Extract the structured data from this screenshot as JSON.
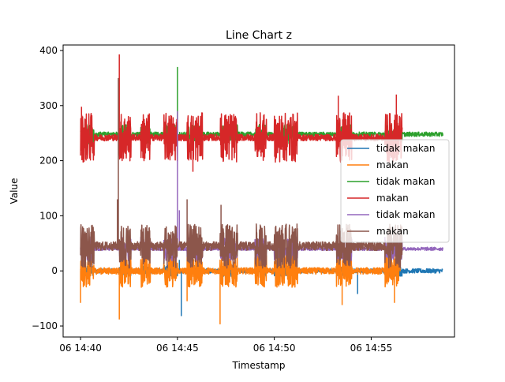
{
  "chart_data": {
    "type": "line",
    "title": "Line Chart z",
    "xlabel": "Timestamp",
    "ylabel": "Value",
    "x_ticks": [
      {
        "value": 0,
        "label": "06 14:40"
      },
      {
        "value": 5,
        "label": "06 14:45"
      },
      {
        "value": 10,
        "label": "06 14:50"
      },
      {
        "value": 15,
        "label": "06 14:55"
      }
    ],
    "xlim_minutes_after_1440": [
      -0.9,
      19.3
    ],
    "ylim": [
      -120,
      410
    ],
    "y_ticks": [
      -100,
      0,
      100,
      200,
      300,
      400
    ],
    "legend_position": "center-right",
    "grid": false,
    "series": [
      {
        "name": "tidak makan",
        "color": "#1f77b4",
        "base": 0,
        "noise": 4,
        "burst": 10,
        "spikes": [
          [
            5.2,
            -82
          ],
          [
            5.1,
            20
          ],
          [
            13.5,
            -10
          ],
          [
            14.3,
            -42
          ]
        ]
      },
      {
        "name": "makan",
        "color": "#ff7f0e",
        "base": 0,
        "noise": 6,
        "burst": 30,
        "spikes": [
          [
            0.0,
            -58
          ],
          [
            2.0,
            -88
          ],
          [
            7.2,
            -97
          ],
          [
            5.5,
            -55
          ],
          [
            13.5,
            -62
          ],
          [
            16.2,
            -58
          ]
        ]
      },
      {
        "name": "tidak makan",
        "color": "#2ca02c",
        "base": 248,
        "noise": 4,
        "burst": 18,
        "spikes": [
          [
            5.0,
            370
          ],
          [
            7.3,
            205
          ]
        ]
      },
      {
        "name": "makan",
        "color": "#d62728",
        "base": 242,
        "noise": 6,
        "burst": 45,
        "spikes": [
          [
            2.0,
            393
          ],
          [
            0.05,
            298
          ],
          [
            5.8,
            180
          ],
          [
            13.3,
            318
          ],
          [
            16.3,
            320
          ]
        ]
      },
      {
        "name": "tidak makan",
        "color": "#9467bd",
        "base": 40,
        "noise": 3,
        "burst": 22,
        "spikes": [
          [
            5.0,
            290
          ],
          [
            5.1,
            110
          ]
        ]
      },
      {
        "name": "makan",
        "color": "#8c564b",
        "base": 45,
        "noise": 8,
        "burst": 40,
        "spikes": [
          [
            1.95,
            350
          ],
          [
            1.9,
            130
          ],
          [
            5.5,
            130
          ],
          [
            7.25,
            120
          ]
        ]
      }
    ],
    "x_end_minutes": {
      "series_0": 18.7,
      "series_1": 16.5,
      "series_2": 18.7,
      "series_3": 16.6,
      "series_4": 18.7,
      "series_5": 16.6
    },
    "bursts": [
      [
        0,
        0.7
      ],
      [
        2.0,
        2.6
      ],
      [
        3.1,
        3.6
      ],
      [
        4.3,
        5.0
      ],
      [
        5.5,
        6.3
      ],
      [
        7.2,
        8.1
      ],
      [
        9.0,
        9.6
      ],
      [
        10.0,
        11.2
      ],
      [
        13.2,
        14.0
      ],
      [
        15.7,
        16.6
      ]
    ]
  }
}
